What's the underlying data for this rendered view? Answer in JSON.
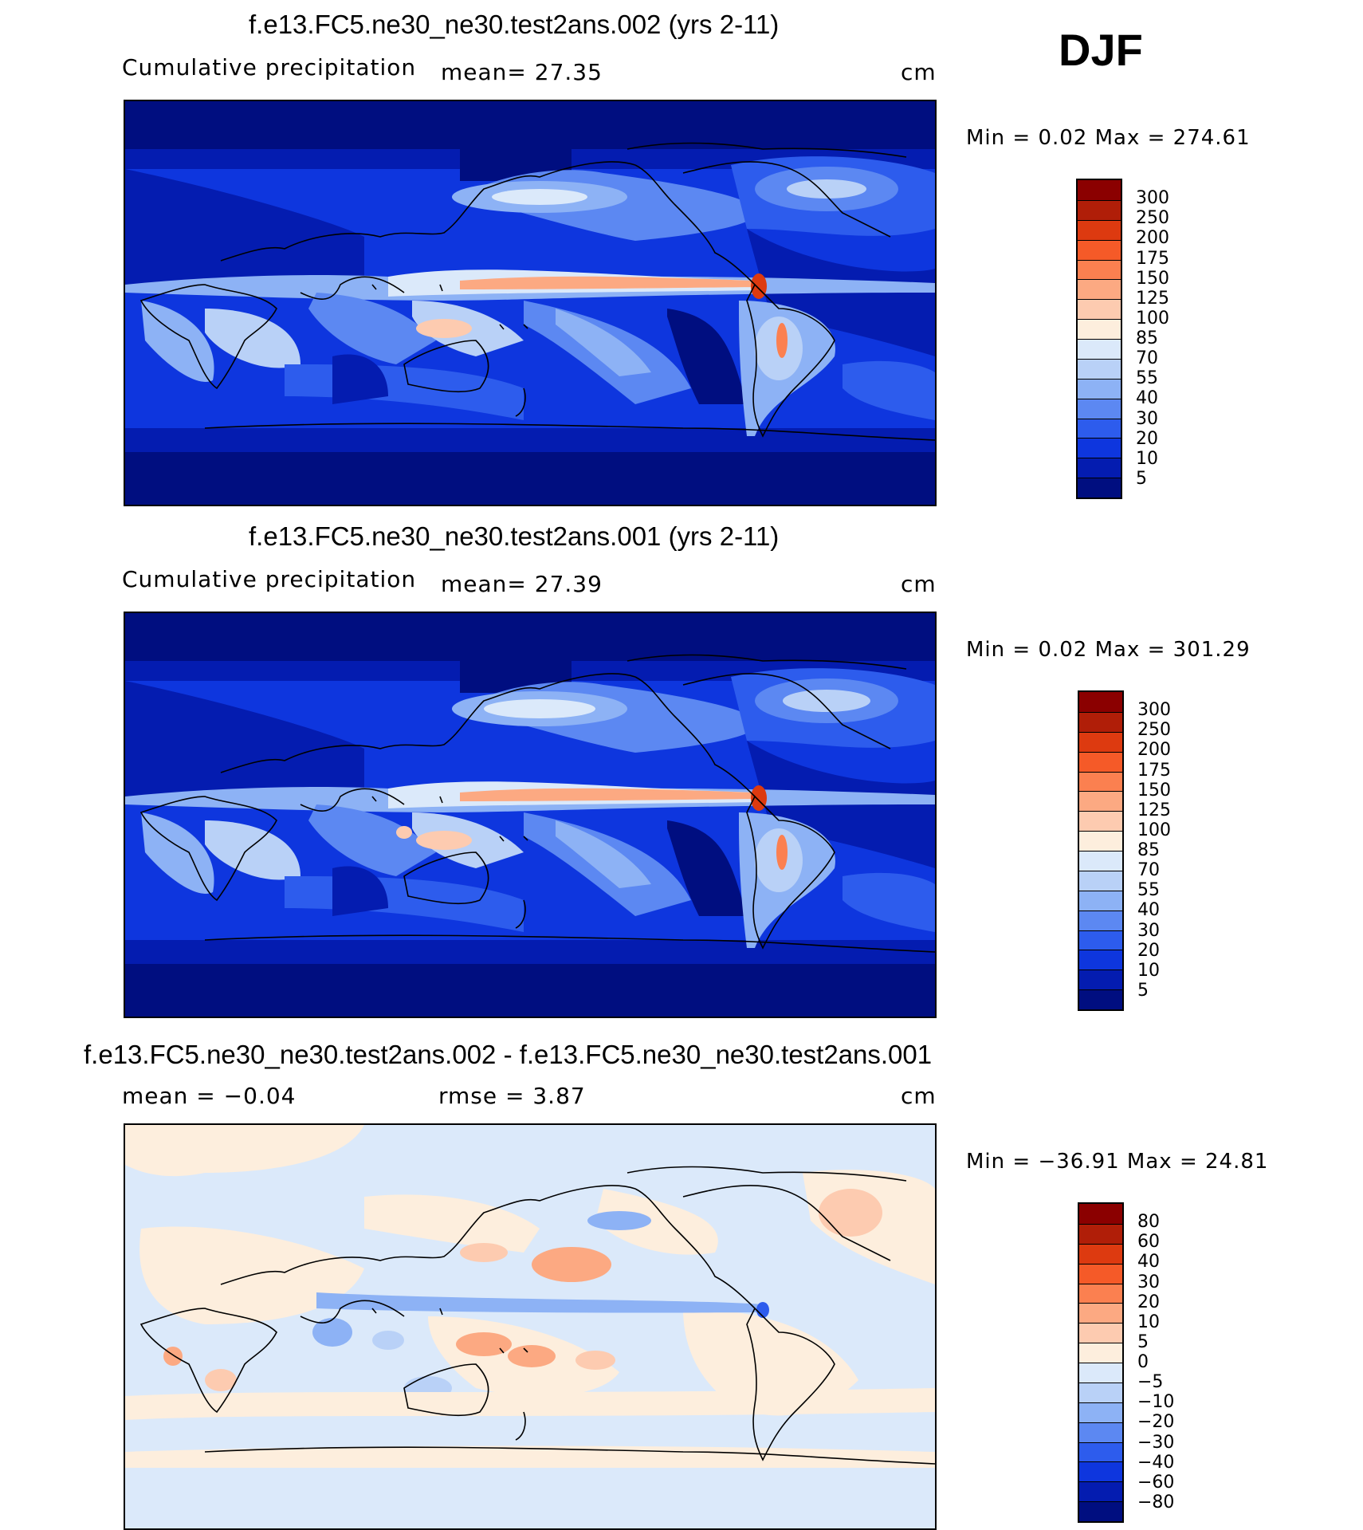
{
  "season": "DJF",
  "panels": [
    {
      "title": "f.e13.FC5.ne30_ne30.test2ans.002 (yrs 2-11)",
      "left": "Cumulative precipitation",
      "center": "mean=   27.35",
      "right": "cm",
      "minmax": "Min =     0.02  Max  =  274.61",
      "colorbar": {
        "labels": [
          "300",
          "250",
          "200",
          "175",
          "150",
          "125",
          "100",
          "85",
          "70",
          "55",
          "40",
          "30",
          "20",
          "10",
          "5"
        ],
        "colors": [
          "#8b0000",
          "#b01e08",
          "#dd3a10",
          "#f55a28",
          "#fb8050",
          "#fca982",
          "#fdcbb0",
          "#fdeedd",
          "#dbe9fa",
          "#b9d1f7",
          "#8db2f5",
          "#5c88f2",
          "#2d5ced",
          "#0e36de",
          "#041cb0",
          "#000e80"
        ]
      }
    },
    {
      "title": "f.e13.FC5.ne30_ne30.test2ans.001 (yrs 2-11)",
      "left": "Cumulative precipitation",
      "center": "mean=   27.39",
      "right": "cm",
      "minmax": "Min =     0.02  Max  =  301.29",
      "colorbar": {
        "labels": [
          "300",
          "250",
          "200",
          "175",
          "150",
          "125",
          "100",
          "85",
          "70",
          "55",
          "40",
          "30",
          "20",
          "10",
          "5"
        ],
        "colors": [
          "#8b0000",
          "#b01e08",
          "#dd3a10",
          "#f55a28",
          "#fb8050",
          "#fca982",
          "#fdcbb0",
          "#fdeedd",
          "#dbe9fa",
          "#b9d1f7",
          "#8db2f5",
          "#5c88f2",
          "#2d5ced",
          "#0e36de",
          "#041cb0",
          "#000e80"
        ]
      }
    },
    {
      "title": "f.e13.FC5.ne30_ne30.test2ans.002 - f.e13.FC5.ne30_ne30.test2ans.001",
      "left": "mean  =   −0.04",
      "center": "rmse  =     3.87",
      "right": "cm",
      "minmax": "Min  =  −36.91  Max  =    24.81",
      "colorbar": {
        "labels": [
          "80",
          "60",
          "40",
          "30",
          "20",
          "10",
          "5",
          "0",
          "−5",
          "−10",
          "−20",
          "−30",
          "−40",
          "−60",
          "−80"
        ],
        "colors": [
          "#8b0000",
          "#b01e08",
          "#dd3a10",
          "#f55a28",
          "#fb8050",
          "#fca982",
          "#fdcbb0",
          "#fdeedd",
          "#dbe9fa",
          "#b9d1f7",
          "#8db2f5",
          "#5c88f2",
          "#2d5ced",
          "#0e36de",
          "#041cb0",
          "#000e80"
        ]
      }
    }
  ]
}
